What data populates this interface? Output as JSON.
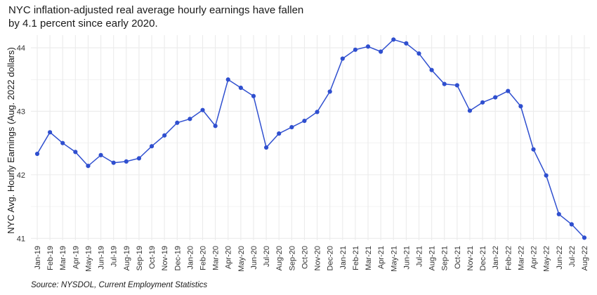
{
  "title_line1": "NYC inflation-adjusted real average hourly earnings have fallen",
  "title_line2": "by 4.1 percent since early 2020.",
  "caption": "Source: NYSDOL, Current Employment Statistics",
  "colors": {
    "line": "#2f4fcf",
    "point": "#2f4fcf",
    "grid": "#ebebeb",
    "background": "#ffffff"
  },
  "chart_data": {
    "type": "line",
    "title": "NYC inflation-adjusted real average hourly earnings have fallen by 4.1 percent since early 2020.",
    "xlabel": "",
    "ylabel": "NYC Avg. Hourly Earnings (Aug. 2022 dollars)",
    "ylim": [
      40.97,
      44.2
    ],
    "yticks": [
      41,
      42,
      43,
      44
    ],
    "grid": true,
    "legend": "none",
    "x": [
      "Jan-19",
      "Feb-19",
      "Mar-19",
      "Apr-19",
      "May-19",
      "Jun-19",
      "Jul-19",
      "Aug-19",
      "Sep-19",
      "Oct-19",
      "Nov-19",
      "Dec-19",
      "Jan-20",
      "Feb-20",
      "Mar-20",
      "Apr-20",
      "May-20",
      "Jun-20",
      "Jul-20",
      "Aug-20",
      "Sep-20",
      "Oct-20",
      "Nov-20",
      "Dec-20",
      "Jan-21",
      "Feb-21",
      "Mar-21",
      "Apr-21",
      "May-21",
      "Jun-21",
      "Jul-21",
      "Aug-21",
      "Sep-21",
      "Oct-21",
      "Nov-21",
      "Dec-21",
      "Jan-22",
      "Feb-22",
      "Mar-22",
      "Apr-22",
      "May-22",
      "Jun-22",
      "Jul-22",
      "Aug-22"
    ],
    "series": [
      {
        "values": [
          42.33,
          42.67,
          42.5,
          42.36,
          42.14,
          42.31,
          42.19,
          42.21,
          42.26,
          42.45,
          42.62,
          42.82,
          42.88,
          43.02,
          42.77,
          43.5,
          43.37,
          43.24,
          42.43,
          42.65,
          42.75,
          42.85,
          42.99,
          43.31,
          43.83,
          43.97,
          44.02,
          43.94,
          44.13,
          44.07,
          43.91,
          43.65,
          43.43,
          43.41,
          43.01,
          43.14,
          43.22,
          43.32,
          43.08,
          42.4,
          41.99,
          41.38,
          41.22,
          41.01
        ]
      }
    ]
  }
}
